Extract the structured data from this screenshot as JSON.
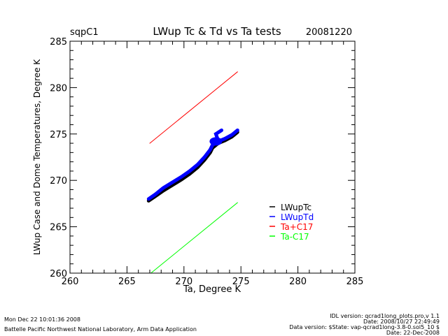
{
  "chart_data": {
    "type": "scatter",
    "title": "LWup Tc & Td vs Ta tests",
    "site": "sqpC1",
    "date": "20081220",
    "xlabel": "Ta, Degree K",
    "ylabel": "LWup Case and Dome Temperatures, Degree K",
    "xlim": [
      260,
      285
    ],
    "ylim": [
      260,
      285
    ],
    "xticks": [
      "260",
      "265",
      "270",
      "275",
      "280",
      "285"
    ],
    "yticks": [
      "260",
      "265",
      "270",
      "275",
      "280",
      "285"
    ],
    "legend_position": "lower-right",
    "series": [
      {
        "name": "LWupTc",
        "color": "#000000",
        "points": [
          [
            266.9,
            267.8
          ],
          [
            267.5,
            268.3
          ],
          [
            268.2,
            268.9
          ],
          [
            269.0,
            269.5
          ],
          [
            269.8,
            270.1
          ],
          [
            270.5,
            270.7
          ],
          [
            271.2,
            271.4
          ],
          [
            271.8,
            272.2
          ],
          [
            272.3,
            273.0
          ],
          [
            272.5,
            273.5
          ],
          [
            273.0,
            274.0
          ],
          [
            273.6,
            274.3
          ],
          [
            274.2,
            274.7
          ],
          [
            274.7,
            275.2
          ]
        ]
      },
      {
        "name": "LWupTd",
        "color": "#0000ff",
        "points": [
          [
            266.9,
            268.0
          ],
          [
            267.5,
            268.5
          ],
          [
            268.2,
            269.2
          ],
          [
            269.0,
            269.8
          ],
          [
            269.8,
            270.4
          ],
          [
            270.5,
            271.0
          ],
          [
            271.2,
            271.7
          ],
          [
            271.8,
            272.5
          ],
          [
            272.3,
            273.3
          ],
          [
            272.5,
            273.8
          ],
          [
            273.0,
            274.2
          ],
          [
            273.6,
            274.5
          ],
          [
            274.2,
            274.9
          ],
          [
            274.7,
            275.4
          ]
        ],
        "branch": [
          [
            273.0,
            274.3
          ],
          [
            272.8,
            275.0
          ],
          [
            273.3,
            275.4
          ]
        ]
      },
      {
        "name": "Ta+C17",
        "color": "#ff0000",
        "points": [
          [
            267.0,
            274.0
          ],
          [
            274.7,
            281.7
          ]
        ]
      },
      {
        "name": "Ta-C17",
        "color": "#00ff00",
        "points": [
          [
            267.1,
            260.0
          ],
          [
            274.7,
            267.6
          ]
        ]
      }
    ]
  },
  "footer": {
    "timestamp": "Mon Dec 22 10:01:36 2008",
    "org": "Battelle Pacific Northwest National Laboratory, Arm Data Application",
    "idl": "IDL version: qcrad1long_plots.pro,v 1.1",
    "idl_date": "Date: 2008/10/27 22:49:49",
    "data_version": "Data version: $State: vap-qcrad1long-3.8-0.sol5_10 $",
    "data_date": "Date: 22-Dec-2008"
  }
}
